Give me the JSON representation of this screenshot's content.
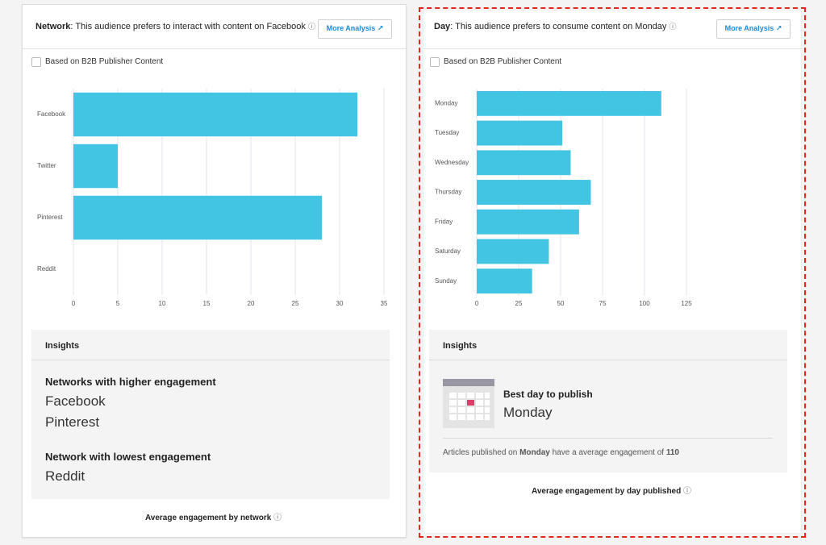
{
  "panels": [
    {
      "heading_bold": "Network",
      "heading": ": This audience prefers to interact with content on Facebook",
      "button": "More Analysis",
      "checkbox_label": "Based on B2B Publisher Content",
      "insights_title": "Insights",
      "sections": [
        {
          "title": "Networks with higher engagement",
          "items": [
            "Facebook",
            "Pinterest"
          ]
        },
        {
          "title": "Network with lowest engagement",
          "items": [
            "Reddit"
          ]
        }
      ],
      "footer": "Average engagement by network"
    },
    {
      "heading_bold": "Day",
      "heading": ": This audience prefers to consume content on Monday",
      "button": "More Analysis",
      "checkbox_label": "Based on B2B Publisher Content",
      "insights_title": "Insights",
      "best_day_title": "Best day to publish",
      "best_day": "Monday",
      "note": [
        "Articles published on ",
        "Monday",
        " have a average engagement of ",
        "110"
      ],
      "footer": "Average engagement by day published"
    }
  ],
  "chart_data": [
    {
      "type": "bar",
      "orientation": "horizontal",
      "categories": [
        "Facebook",
        "Twitter",
        "Pinterest",
        "Reddit"
      ],
      "values": [
        32,
        5,
        28,
        0
      ],
      "color": "#42c5e2",
      "xlim": [
        0,
        35
      ],
      "xticks": [
        0,
        5,
        10,
        15,
        20,
        25,
        30,
        35
      ],
      "grid": true
    },
    {
      "type": "bar",
      "orientation": "horizontal",
      "categories": [
        "Monday",
        "Tuesday",
        "Wednesday",
        "Thursday",
        "Friday",
        "Saturday",
        "Sunday"
      ],
      "values": [
        110,
        51,
        56,
        68,
        61,
        43,
        33
      ],
      "color": "#42c5e2",
      "xlim": [
        0,
        125
      ],
      "xticks": [
        0,
        25,
        50,
        75,
        100,
        125
      ],
      "grid": true
    }
  ]
}
